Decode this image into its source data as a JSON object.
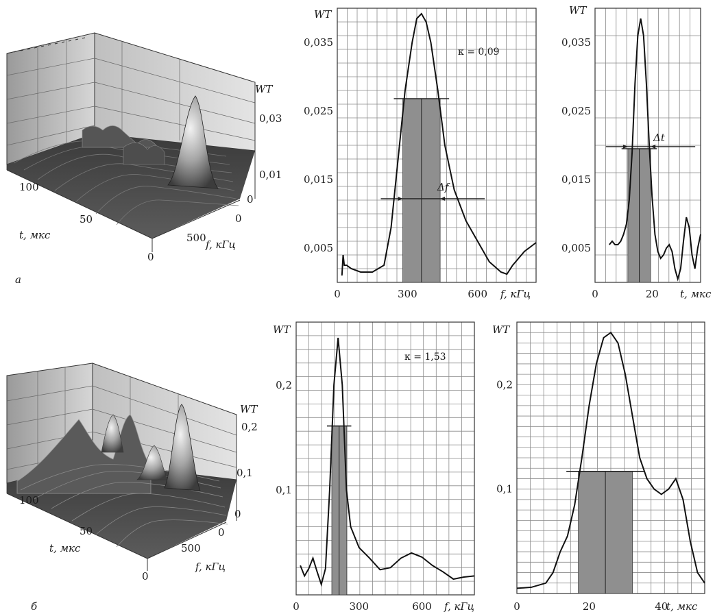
{
  "chart_data": [
    {
      "id": "a-surface",
      "type": "surface",
      "panel_label": "а",
      "x_axis_label": "t, мкс",
      "y_axis_label": "f, кГц",
      "z_axis_label": "WT",
      "x_ticks": [
        "0",
        "50",
        "100"
      ],
      "y_ticks": [
        "0",
        "500"
      ],
      "z_ticks": [
        "0",
        "0,01",
        "0,03"
      ],
      "peak": {
        "t": 18,
        "f": 350,
        "wt": 0.038
      }
    },
    {
      "id": "a-freq",
      "type": "line",
      "x_axis_label": "f, кГц",
      "y_axis_label": "WT",
      "xlim": [
        0,
        850
      ],
      "ylim": [
        0,
        0.04
      ],
      "x_ticks": [
        "0",
        "300",
        "600"
      ],
      "y_ticks": [
        "0,005",
        "0,015",
        "0,025",
        "0,035"
      ],
      "annotation": "κ = 0,09",
      "width_label": "Δf",
      "band": {
        "from": 280,
        "to": 440,
        "level": 0.0268
      },
      "series": [
        {
          "x": [
            20,
            25,
            30,
            40,
            60,
            100,
            150,
            200,
            230,
            260,
            290,
            320,
            340,
            360,
            380,
            400,
            430,
            460,
            500,
            550,
            600,
            650,
            700,
            725,
            750,
            800,
            850
          ],
          "y": [
            0.001,
            0.004,
            0.0025,
            0.0025,
            0.002,
            0.0015,
            0.0015,
            0.0025,
            0.008,
            0.018,
            0.028,
            0.035,
            0.0385,
            0.0392,
            0.038,
            0.035,
            0.028,
            0.02,
            0.0135,
            0.009,
            0.006,
            0.003,
            0.0015,
            0.0012,
            0.0025,
            0.0045,
            0.0058
          ]
        }
      ]
    },
    {
      "id": "a-time",
      "type": "line",
      "x_axis_label": "t, мкс",
      "y_axis_label": "WT",
      "xlim": [
        0,
        37
      ],
      "ylim": [
        0,
        0.04
      ],
      "x_ticks": [
        "0",
        "20"
      ],
      "y_ticks": [
        "0,005",
        "0,015",
        "0,025",
        "0,035"
      ],
      "width_label": "Δt",
      "band": {
        "from": 11.5,
        "to": 19.5,
        "level": 0.0195
      },
      "series": [
        {
          "x": [
            5,
            6,
            7,
            8,
            9,
            10,
            11,
            12,
            13,
            14,
            15,
            16,
            17,
            18,
            19,
            20,
            21,
            22,
            23,
            24,
            25,
            26,
            27,
            28,
            29,
            30,
            31,
            32,
            33,
            34,
            35,
            36,
            37
          ],
          "y": [
            0.0055,
            0.006,
            0.0055,
            0.0055,
            0.006,
            0.007,
            0.0085,
            0.012,
            0.019,
            0.029,
            0.036,
            0.0385,
            0.036,
            0.029,
            0.02,
            0.0125,
            0.007,
            0.0045,
            0.0035,
            0.004,
            0.005,
            0.0055,
            0.0045,
            0.002,
            0.0005,
            0.002,
            0.006,
            0.0095,
            0.008,
            0.004,
            0.002,
            0.005,
            0.007
          ]
        }
      ]
    },
    {
      "id": "b-surface",
      "type": "surface",
      "panel_label": "б",
      "x_axis_label": "t, мкс",
      "y_axis_label": "f, кГц",
      "z_axis_label": "WT",
      "x_ticks": [
        "0",
        "50",
        "100"
      ],
      "y_ticks": [
        "0",
        "500"
      ],
      "z_ticks": [
        "0",
        "0,1",
        "0,2"
      ],
      "peak": {
        "t": 30,
        "f": 200,
        "wt": 0.23
      }
    },
    {
      "id": "b-freq",
      "type": "line",
      "x_axis_label": "f, кГц",
      "y_axis_label": "WT",
      "xlim": [
        0,
        850
      ],
      "ylim": [
        0,
        0.26
      ],
      "x_ticks": [
        "0",
        "300",
        "600"
      ],
      "y_ticks": [
        "0,1",
        "0,2"
      ],
      "annotation": "κ = 1,53",
      "band": {
        "from": 170,
        "to": 240,
        "level": 0.161
      },
      "series": [
        {
          "x": [
            20,
            40,
            60,
            80,
            100,
            120,
            140,
            160,
            180,
            200,
            220,
            240,
            260,
            300,
            350,
            400,
            450,
            500,
            550,
            600,
            650,
            700,
            750,
            800,
            850
          ],
          "y": [
            0.028,
            0.018,
            0.025,
            0.035,
            0.022,
            0.01,
            0.025,
            0.1,
            0.2,
            0.245,
            0.2,
            0.1,
            0.065,
            0.045,
            0.035,
            0.024,
            0.026,
            0.035,
            0.04,
            0.036,
            0.028,
            0.022,
            0.015,
            0.017,
            0.018
          ]
        }
      ]
    },
    {
      "id": "b-time",
      "type": "line",
      "x_axis_label": "t, мкс",
      "y_axis_label": "WT",
      "xlim": [
        0,
        52
      ],
      "ylim": [
        0,
        0.26
      ],
      "x_ticks": [
        "0",
        "20",
        "40"
      ],
      "y_ticks": [
        "0,1",
        "0,2"
      ],
      "band": {
        "from": 17,
        "to": 32,
        "level": 0.117
      },
      "series": [
        {
          "x": [
            0,
            4,
            8,
            10,
            12,
            14,
            16,
            18,
            20,
            22,
            24,
            26,
            28,
            30,
            32,
            34,
            36,
            38,
            40,
            42,
            44,
            46,
            48,
            50,
            52
          ],
          "y": [
            0.005,
            0.006,
            0.01,
            0.02,
            0.04,
            0.055,
            0.085,
            0.13,
            0.18,
            0.22,
            0.245,
            0.25,
            0.24,
            0.21,
            0.17,
            0.13,
            0.11,
            0.1,
            0.095,
            0.1,
            0.11,
            0.09,
            0.05,
            0.02,
            0.01
          ]
        }
      ]
    }
  ]
}
